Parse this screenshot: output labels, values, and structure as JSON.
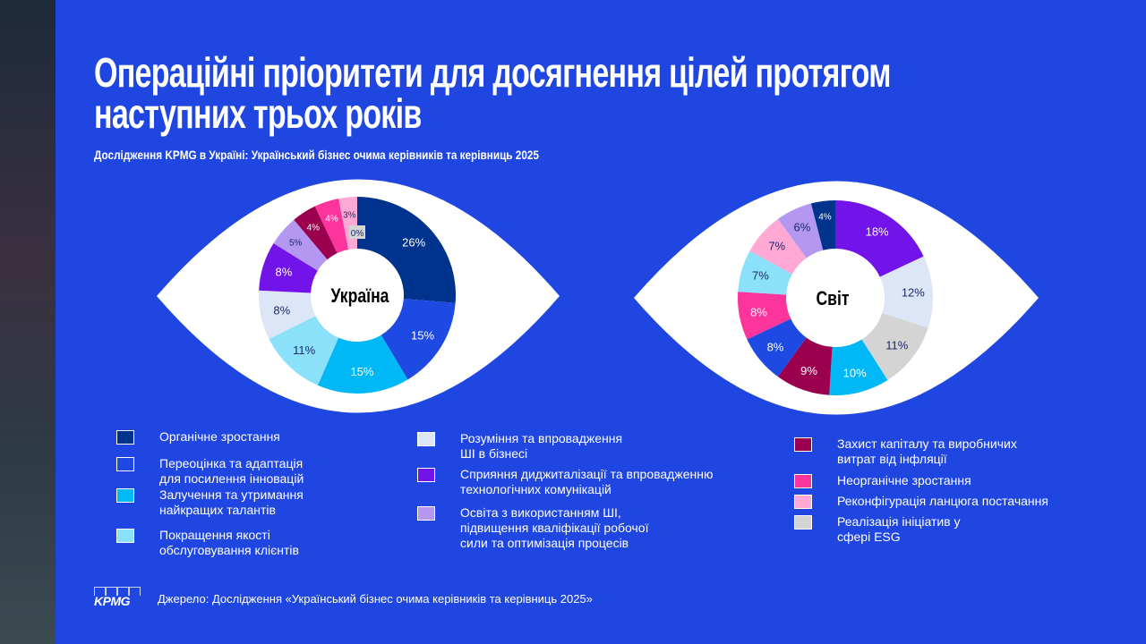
{
  "title_line1": "Операційні пріоритети для досягнення цілей протягом",
  "title_line2": "наступних трьох років",
  "subtitle": "Дослідження KPMG в Україні: Український бізнес очима керівників та керівниць 2025",
  "legend": [
    {
      "label": "Органічне зростання",
      "color": "#00338D"
    },
    {
      "label": "Переоцінка та адаптація для посилення інновацій",
      "color": "#1E49E2"
    },
    {
      "label": "Залучення та утримання найкращих талантів",
      "color": "#00B8F5"
    },
    {
      "label": "Покращення якості обслуговування клієнтів",
      "color": "#8BE0FA"
    },
    {
      "label": "Розуміння та впровадження ШІ в бізнесі",
      "color": "#DCE6F7"
    },
    {
      "label": "Сприяння диджиталізації та впровадженню технологічних комунікацій",
      "color": "#7213EA"
    },
    {
      "label": "Освіта з використанням ШІ, підвищення кваліфікації робочої сили та оптимізація процесів",
      "color": "#B497F0"
    },
    {
      "label": "Захист капіталу та виробничих витрат від інфляції",
      "color": "#9B004F"
    },
    {
      "label": "Неорганічне зростання",
      "color": "#FD349C"
    },
    {
      "label": "Реконфігурація ланцюга постачання",
      "color": "#FFA8D4"
    },
    {
      "label": "Реалізація ініціатив у сфері ESG",
      "color": "#D4D4D4"
    }
  ],
  "legend_lines": [
    [
      "Органічне зростання"
    ],
    [
      "Переоцінка та адаптація",
      "для посилення інновацій"
    ],
    [
      "Залучення та утримання",
      "найкращих талантів"
    ],
    [
      "Покращення якості",
      "обслуговування клієнтів"
    ],
    [
      "Розуміння та впровадження",
      "ШІ в бізнесі"
    ],
    [
      "Сприяння диджиталізації та впровадженню",
      "технологічних комунікацій"
    ],
    [
      "Освіта з використанням ШІ,",
      "підвищення кваліфікації робочої",
      "сили та оптимізація процесів"
    ],
    [
      "Захист капіталу та виробничих",
      "витрат від інфляції"
    ],
    [
      "Неорганічне зростання"
    ],
    [
      "Реконфігурація ланцюга постачання"
    ],
    [
      "Реалізація ініціатив у",
      "сфері ESG"
    ]
  ],
  "chart_data": [
    {
      "type": "pie",
      "title": "Україна",
      "categories_index": [
        0,
        1,
        2,
        3,
        4,
        5,
        6,
        7,
        8,
        9,
        10
      ],
      "values": [
        26,
        15,
        15,
        11,
        8,
        8,
        5,
        4,
        4,
        3,
        0
      ]
    },
    {
      "type": "pie",
      "title": "Світ",
      "categories_index": [
        5,
        4,
        10,
        2,
        7,
        1,
        8,
        3,
        9,
        6,
        0
      ],
      "values": [
        18,
        12,
        11,
        10,
        9,
        8,
        8,
        7,
        7,
        6,
        4
      ]
    }
  ],
  "source": "Джерело: Дослідження «Український бізнес очима керівників та керівниць 2025»",
  "logo_text": "KPMG"
}
